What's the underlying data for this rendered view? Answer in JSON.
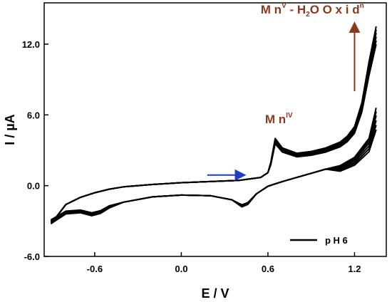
{
  "chart_data": {
    "type": "line",
    "title": "",
    "xlabel": "E / V",
    "ylabel": "I / µA",
    "xlim": [
      -0.95,
      1.42
    ],
    "ylim": [
      -6.0,
      15.5
    ],
    "x_ticks": [
      -0.6,
      0.0,
      0.6,
      1.2
    ],
    "x_tick_labels": [
      "-0.6",
      "0.0",
      "0.6",
      "1.2"
    ],
    "y_ticks": [
      -6.0,
      0.0,
      6.0,
      12.0
    ],
    "y_tick_labels": [
      "-6.0",
      "0.0",
      "6.0",
      "12.0"
    ],
    "grid": false,
    "legend": {
      "position": "bottom-right",
      "entries": [
        "p H 6"
      ]
    },
    "annotations": {
      "mn4": {
        "base": "M n",
        "sup": "IV",
        "x": 0.58,
        "y": 5.3
      },
      "mn5": {
        "base": "M n",
        "sup": "V",
        "rest": " - H",
        "sub": "2",
        "rest2": "O  O x i d",
        "sup2": "n",
        "x": 0.55,
        "y": 14.6
      }
    },
    "arrows": [
      {
        "name": "scan-direction",
        "color": "#1f3fbf",
        "from": [
          0.18,
          0.9
        ],
        "to": [
          0.44,
          0.9
        ]
      },
      {
        "name": "increase-direction",
        "color": "#8B3A1F",
        "from": [
          1.2,
          8.0
        ],
        "to": [
          1.2,
          13.8
        ]
      }
    ],
    "series": [
      {
        "name": "p H 6",
        "color": "#000000",
        "cycles": 6,
        "reverse_x": [
          1.35,
          1.3,
          1.2,
          1.1,
          1.0,
          0.9,
          0.8,
          0.7,
          0.6,
          0.52,
          0.46,
          0.42,
          0.35,
          0.2,
          0.0,
          -0.2,
          -0.4,
          -0.5,
          -0.56,
          -0.62,
          -0.7,
          -0.8,
          -0.9
        ],
        "reverse_y": [
          6.6,
          4.0,
          2.4,
          1.7,
          1.4,
          1.05,
          0.7,
          0.35,
          -0.05,
          -0.7,
          -1.6,
          -1.8,
          -1.2,
          -0.85,
          -0.8,
          -0.95,
          -1.4,
          -1.9,
          -2.35,
          -2.55,
          -2.3,
          -2.4,
          -3.2
        ],
        "forward_x": [
          -0.9,
          -0.8,
          -0.7,
          -0.6,
          -0.5,
          -0.4,
          -0.2,
          0.0,
          0.2,
          0.4,
          0.55,
          0.6,
          0.62,
          0.65,
          0.7,
          0.8,
          0.9,
          1.0,
          1.1,
          1.15,
          1.2,
          1.25,
          1.3,
          1.35
        ],
        "forward_y": [
          -3.2,
          -1.6,
          -1.0,
          -0.6,
          -0.3,
          -0.1,
          0.1,
          0.25,
          0.35,
          0.45,
          0.7,
          1.1,
          2.0,
          4.0,
          3.2,
          2.75,
          2.9,
          3.2,
          3.7,
          4.2,
          5.0,
          7.0,
          10.5,
          13.5
        ],
        "cycle_scale_forward": [
          0.72,
          0.78,
          0.84,
          0.9,
          0.95,
          1.0
        ],
        "cycle_scale_reverse": [
          0.9,
          0.92,
          0.94,
          0.96,
          0.98,
          1.0
        ]
      }
    ]
  }
}
